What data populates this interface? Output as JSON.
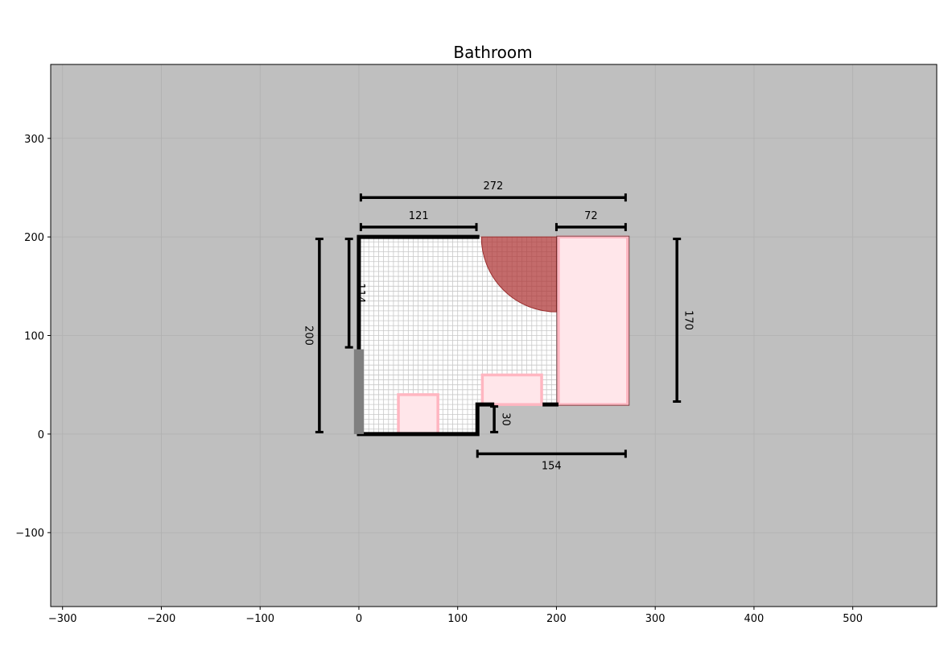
{
  "chart_data": {
    "type": "floor-plan",
    "title": "Bathroom",
    "xlim": [
      -312,
      585
    ],
    "ylim": [
      -175,
      375
    ],
    "grid": true,
    "x_ticks": [
      -300,
      -200,
      -100,
      0,
      100,
      200,
      300,
      400,
      500
    ],
    "y_ticks": [
      -100,
      0,
      100,
      200,
      300
    ],
    "x_tick_labels": [
      "−300",
      "−200",
      "−100",
      "0",
      "100",
      "200",
      "300",
      "400",
      "500"
    ],
    "y_tick_labels": [
      "−100",
      "0",
      "100",
      "200",
      "300"
    ],
    "colors": {
      "background": "#bfbfbf",
      "floor": "#ffffff",
      "floor_grid": "#c8c8c8",
      "wall": "#000000",
      "door": "#808080",
      "fixture_stroke": "#ffb6c1",
      "fixture_fill": "#ffe6ea",
      "door_swing": "#b03a3a"
    },
    "floor_polygon": [
      [
        0,
        0
      ],
      [
        120,
        0
      ],
      [
        120,
        30
      ],
      [
        272,
        30
      ],
      [
        272,
        200
      ],
      [
        0,
        200
      ]
    ],
    "walls": [
      [
        [
          0,
          85
        ],
        [
          0,
          200
        ],
        [
          120,
          200
        ]
      ],
      [
        [
          0,
          0
        ],
        [
          120,
          0
        ],
        [
          120,
          30
        ],
        [
          135,
          30
        ]
      ],
      [
        [
          188,
          30
        ],
        [
          200,
          30
        ]
      ]
    ],
    "door": {
      "x": -5,
      "y": 0,
      "w": 10,
      "h": 86
    },
    "door_swing": {
      "cx": 200,
      "cy": 200,
      "r": 76
    },
    "fixtures": [
      {
        "x": 40,
        "y": 0,
        "w": 40,
        "h": 40
      },
      {
        "x": 125,
        "y": 30,
        "w": 60,
        "h": 30
      },
      {
        "x": 202,
        "y": 30,
        "w": 70,
        "h": 170
      }
    ],
    "dimensions": [
      {
        "label": "272",
        "orientation": "h",
        "from": 2,
        "to": 270,
        "at": 240,
        "label_side": "above"
      },
      {
        "label": "121",
        "orientation": "h",
        "from": 2,
        "to": 119,
        "at": 210,
        "label_side": "above"
      },
      {
        "label": "72",
        "orientation": "h",
        "from": 200,
        "to": 270,
        "at": 210,
        "label_side": "above"
      },
      {
        "label": "154",
        "orientation": "h",
        "from": 120,
        "to": 270,
        "at": -20,
        "label_side": "below"
      },
      {
        "label": "200",
        "orientation": "v",
        "from": 2,
        "to": 198,
        "at": -40,
        "label_side": "left"
      },
      {
        "label": "114",
        "orientation": "v",
        "from": 88,
        "to": 198,
        "at": -10,
        "label_side": "right"
      },
      {
        "label": "30",
        "orientation": "v",
        "from": 2,
        "to": 28,
        "at": 137,
        "label_side": "right"
      },
      {
        "label": "170",
        "orientation": "v",
        "from": 33,
        "to": 198,
        "at": 322,
        "label_side": "right"
      }
    ]
  }
}
